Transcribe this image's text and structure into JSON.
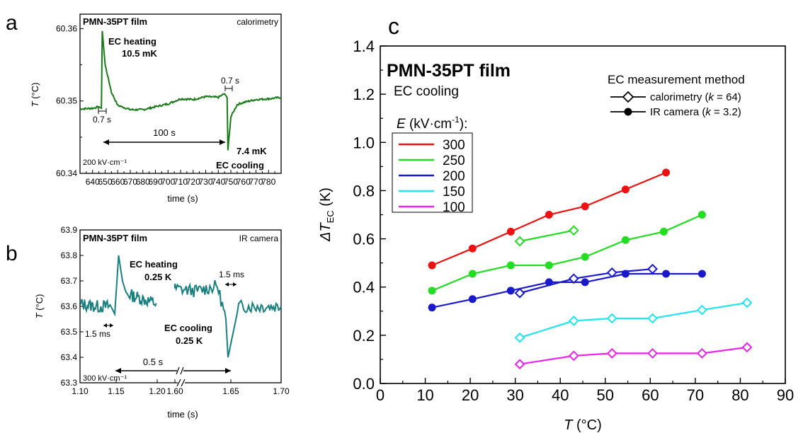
{
  "colors": {
    "panel_a_trace": "#1a7a1a",
    "panel_b_trace": "#1a7f7f",
    "heating_text": "#e8201e",
    "cooling_text": "#1a1adc",
    "s300": "#ee1111",
    "s250": "#22dd22",
    "s200": "#1a1acc",
    "s150": "#22e5ee",
    "s100": "#ee22ee"
  },
  "panel_a": {
    "letter": "a",
    "film": "PMN-35PT film",
    "method": "calorimetry",
    "heating_label": "EC heating",
    "heating_value": "10.5 mK",
    "cooling_label": "EC cooling",
    "cooling_value": "7.4 mK",
    "field": "200 kV·cm⁻¹",
    "dt_left": "0.7 s",
    "dt_right": "0.7 s",
    "interval": "100 s",
    "xlabel": "time (s)",
    "ylabel_var": "T",
    "ylabel_unit": "(°C)",
    "x_ticks": [
      "640",
      "650",
      "660",
      "670",
      "680",
      "690",
      "700",
      "710",
      "720",
      "730",
      "740",
      "750",
      "760",
      "770",
      "780"
    ],
    "y_ticks": [
      "60.36",
      "60.35",
      "60.34"
    ]
  },
  "panel_b": {
    "letter": "b",
    "film": "PMN-35PT film",
    "method": "IR camera",
    "heating_label": "EC heating",
    "heating_value": "0.25 K",
    "cooling_label": "EC cooling",
    "cooling_value": "0.25 K",
    "field": "300 kV·cm⁻¹",
    "dt_left": "1.5 ms",
    "dt_right": "1.5 ms",
    "interval": "0.5 s",
    "xlabel": "time (s)",
    "ylabel_var": "T",
    "ylabel_unit": "(°C)",
    "x_ticks": [
      "1.10",
      "1.15",
      "1.20",
      "1.60",
      "1.65",
      "1.70"
    ],
    "y_ticks": [
      "63.9",
      "63.8",
      "63.7",
      "63.6",
      "63.5",
      "63.4",
      "63.3"
    ]
  },
  "chart_data": [
    {
      "panel": "a",
      "type": "line",
      "xlabel": "time (s)",
      "ylabel": "T (°C)",
      "xlim": [
        630,
        790
      ],
      "ylim": [
        60.34,
        60.362
      ],
      "x": [
        630,
        640,
        645,
        647,
        647.7,
        650,
        655,
        660,
        670,
        680,
        690,
        700,
        710,
        720,
        730,
        740,
        745,
        747,
        747.7,
        750,
        755,
        760,
        770,
        780,
        790
      ],
      "values": [
        60.3489,
        60.349,
        60.3492,
        60.349,
        60.3597,
        60.355,
        60.3512,
        60.3494,
        60.3488,
        60.3488,
        60.3492,
        60.3496,
        60.3503,
        60.3502,
        60.3506,
        60.3505,
        60.351,
        60.3505,
        60.3432,
        60.3478,
        60.3495,
        60.3498,
        60.3502,
        60.3503,
        60.3505
      ]
    },
    {
      "panel": "b",
      "type": "line",
      "xlabel": "time (s)",
      "ylabel": "T (°C)",
      "xlim": [
        1.1,
        1.7
      ],
      "ylim": [
        63.3,
        63.9
      ],
      "x": [
        1.1,
        1.12,
        1.14,
        1.145,
        1.15,
        1.155,
        1.16,
        1.18,
        1.2,
        1.6,
        1.62,
        1.64,
        1.648,
        1.65,
        1.655,
        1.66,
        1.68,
        1.7
      ],
      "values": [
        63.61,
        63.6,
        63.6,
        63.57,
        63.8,
        63.7,
        63.65,
        63.63,
        63.61,
        63.67,
        63.66,
        63.68,
        63.55,
        63.4,
        63.5,
        63.6,
        63.6,
        63.6
      ]
    },
    {
      "panel": "c",
      "type": "line",
      "title": "PMN-35PT film",
      "subtitle": "EC cooling",
      "xlabel": "T (°C)",
      "ylabel": "ΔT_EC (K)",
      "xlim": [
        0,
        90
      ],
      "ylim": [
        0,
        1.4
      ],
      "x_ticks": [
        "0",
        "10",
        "20",
        "30",
        "40",
        "50",
        "60",
        "70",
        "80",
        "90"
      ],
      "y_ticks": [
        "0.0",
        "0.2",
        "0.4",
        "0.6",
        "0.8",
        "1.0",
        "1.2",
        "1.4"
      ],
      "legend_field_title": "E (kV·cm⁻¹):",
      "legend_method_title": "EC measurement method",
      "method_entries": [
        "calorimetry (k = 64)",
        "IR camera (k = 3.2)"
      ],
      "series": [
        {
          "name": "300",
          "method": "IR camera",
          "color": "#ee1111",
          "x": [
            11.5,
            20.5,
            29,
            37.5,
            45.5,
            54.5,
            63.5
          ],
          "values": [
            0.49,
            0.56,
            0.63,
            0.7,
            0.735,
            0.805,
            0.875
          ]
        },
        {
          "name": "300",
          "method": "calorimetry",
          "color": "#ee1111",
          "x": [],
          "values": []
        },
        {
          "name": "250",
          "method": "IR camera",
          "color": "#22dd22",
          "x": [
            11.5,
            20.5,
            29,
            37.5,
            45.5,
            54.5,
            63,
            71.5
          ],
          "values": [
            0.385,
            0.455,
            0.49,
            0.49,
            0.525,
            0.595,
            0.63,
            0.7
          ]
        },
        {
          "name": "250",
          "method": "calorimetry",
          "color": "#22dd22",
          "x": [
            31,
            43
          ],
          "values": [
            0.59,
            0.635
          ]
        },
        {
          "name": "200",
          "method": "IR camera",
          "color": "#1a1acc",
          "x": [
            11.5,
            20.5,
            29,
            37.5,
            45.5,
            54.5,
            63.5,
            71.5
          ],
          "values": [
            0.315,
            0.35,
            0.385,
            0.42,
            0.42,
            0.455,
            0.455,
            0.455
          ]
        },
        {
          "name": "200",
          "method": "calorimetry",
          "color": "#1a1acc",
          "x": [
            31,
            43,
            51.5,
            60.5
          ],
          "values": [
            0.375,
            0.435,
            0.46,
            0.475
          ]
        },
        {
          "name": "150",
          "method": "calorimetry",
          "color": "#22e5ee",
          "x": [
            31,
            43,
            51.5,
            60.5,
            71.5,
            81.5
          ],
          "values": [
            0.19,
            0.26,
            0.27,
            0.27,
            0.305,
            0.335
          ]
        },
        {
          "name": "100",
          "method": "calorimetry",
          "color": "#ee22ee",
          "x": [
            31,
            43,
            51.5,
            60.5,
            71.5,
            81.5
          ],
          "values": [
            0.08,
            0.115,
            0.125,
            0.125,
            0.125,
            0.15
          ]
        }
      ]
    }
  ]
}
